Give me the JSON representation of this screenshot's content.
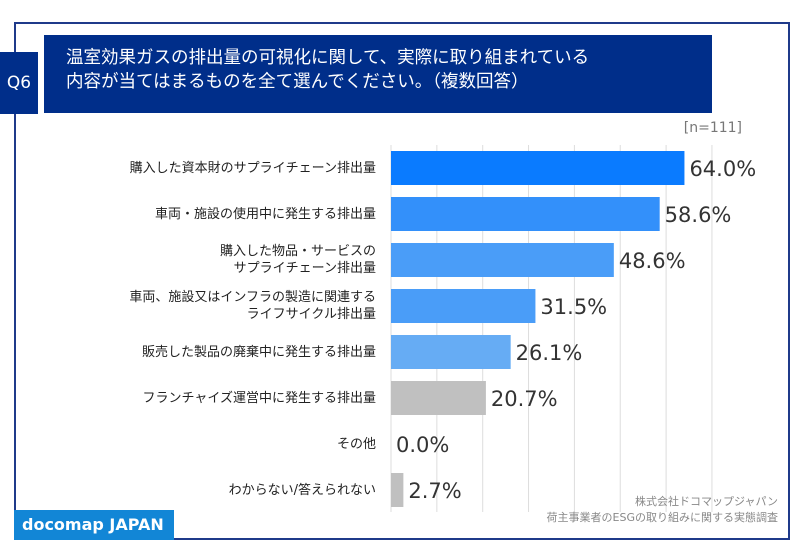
{
  "header": {
    "question": "Q6",
    "title": "温室効果ガスの排出量の可視化に関して、実際に取り組まれている\n内容が当てはまるものを全て選んでください。（複数回答）",
    "sample": "[n=111]"
  },
  "chart_data": {
    "type": "bar",
    "orientation": "horizontal",
    "grid": true,
    "xlim": [
      0,
      70
    ],
    "categories": [
      "購入した資本財のサプライチェーン排出量",
      "車両・施設の使用中に発生する排出量",
      "購入した物品・サービスの\nサプライチェーン排出量",
      "車両、施設又はインフラの製造に関連する\nライフサイクル排出量",
      "販売した製品の廃棄中に発生する排出量",
      "フランチャイズ運営中に発生する排出量",
      "その他",
      "わからない/答えられない"
    ],
    "values": [
      64.0,
      58.6,
      48.6,
      31.5,
      26.1,
      20.7,
      0.0,
      2.7
    ],
    "labels": [
      "64.0%",
      "58.6%",
      "48.6%",
      "31.5%",
      "26.1%",
      "20.7%",
      "0.0%",
      "2.7%"
    ],
    "colors": [
      "#0a7bff",
      "#3390fa",
      "#4a9df8",
      "#4a9df8",
      "#66acf4",
      "#c0c0c0",
      "#c0c0c0",
      "#c0c0c0"
    ]
  },
  "footer": {
    "logo": "docomap JAPAN",
    "source_line1": "株式会社ドコマップジャパン",
    "source_line2": "荷主事業者のESGの取り組みに関する実態調査"
  }
}
